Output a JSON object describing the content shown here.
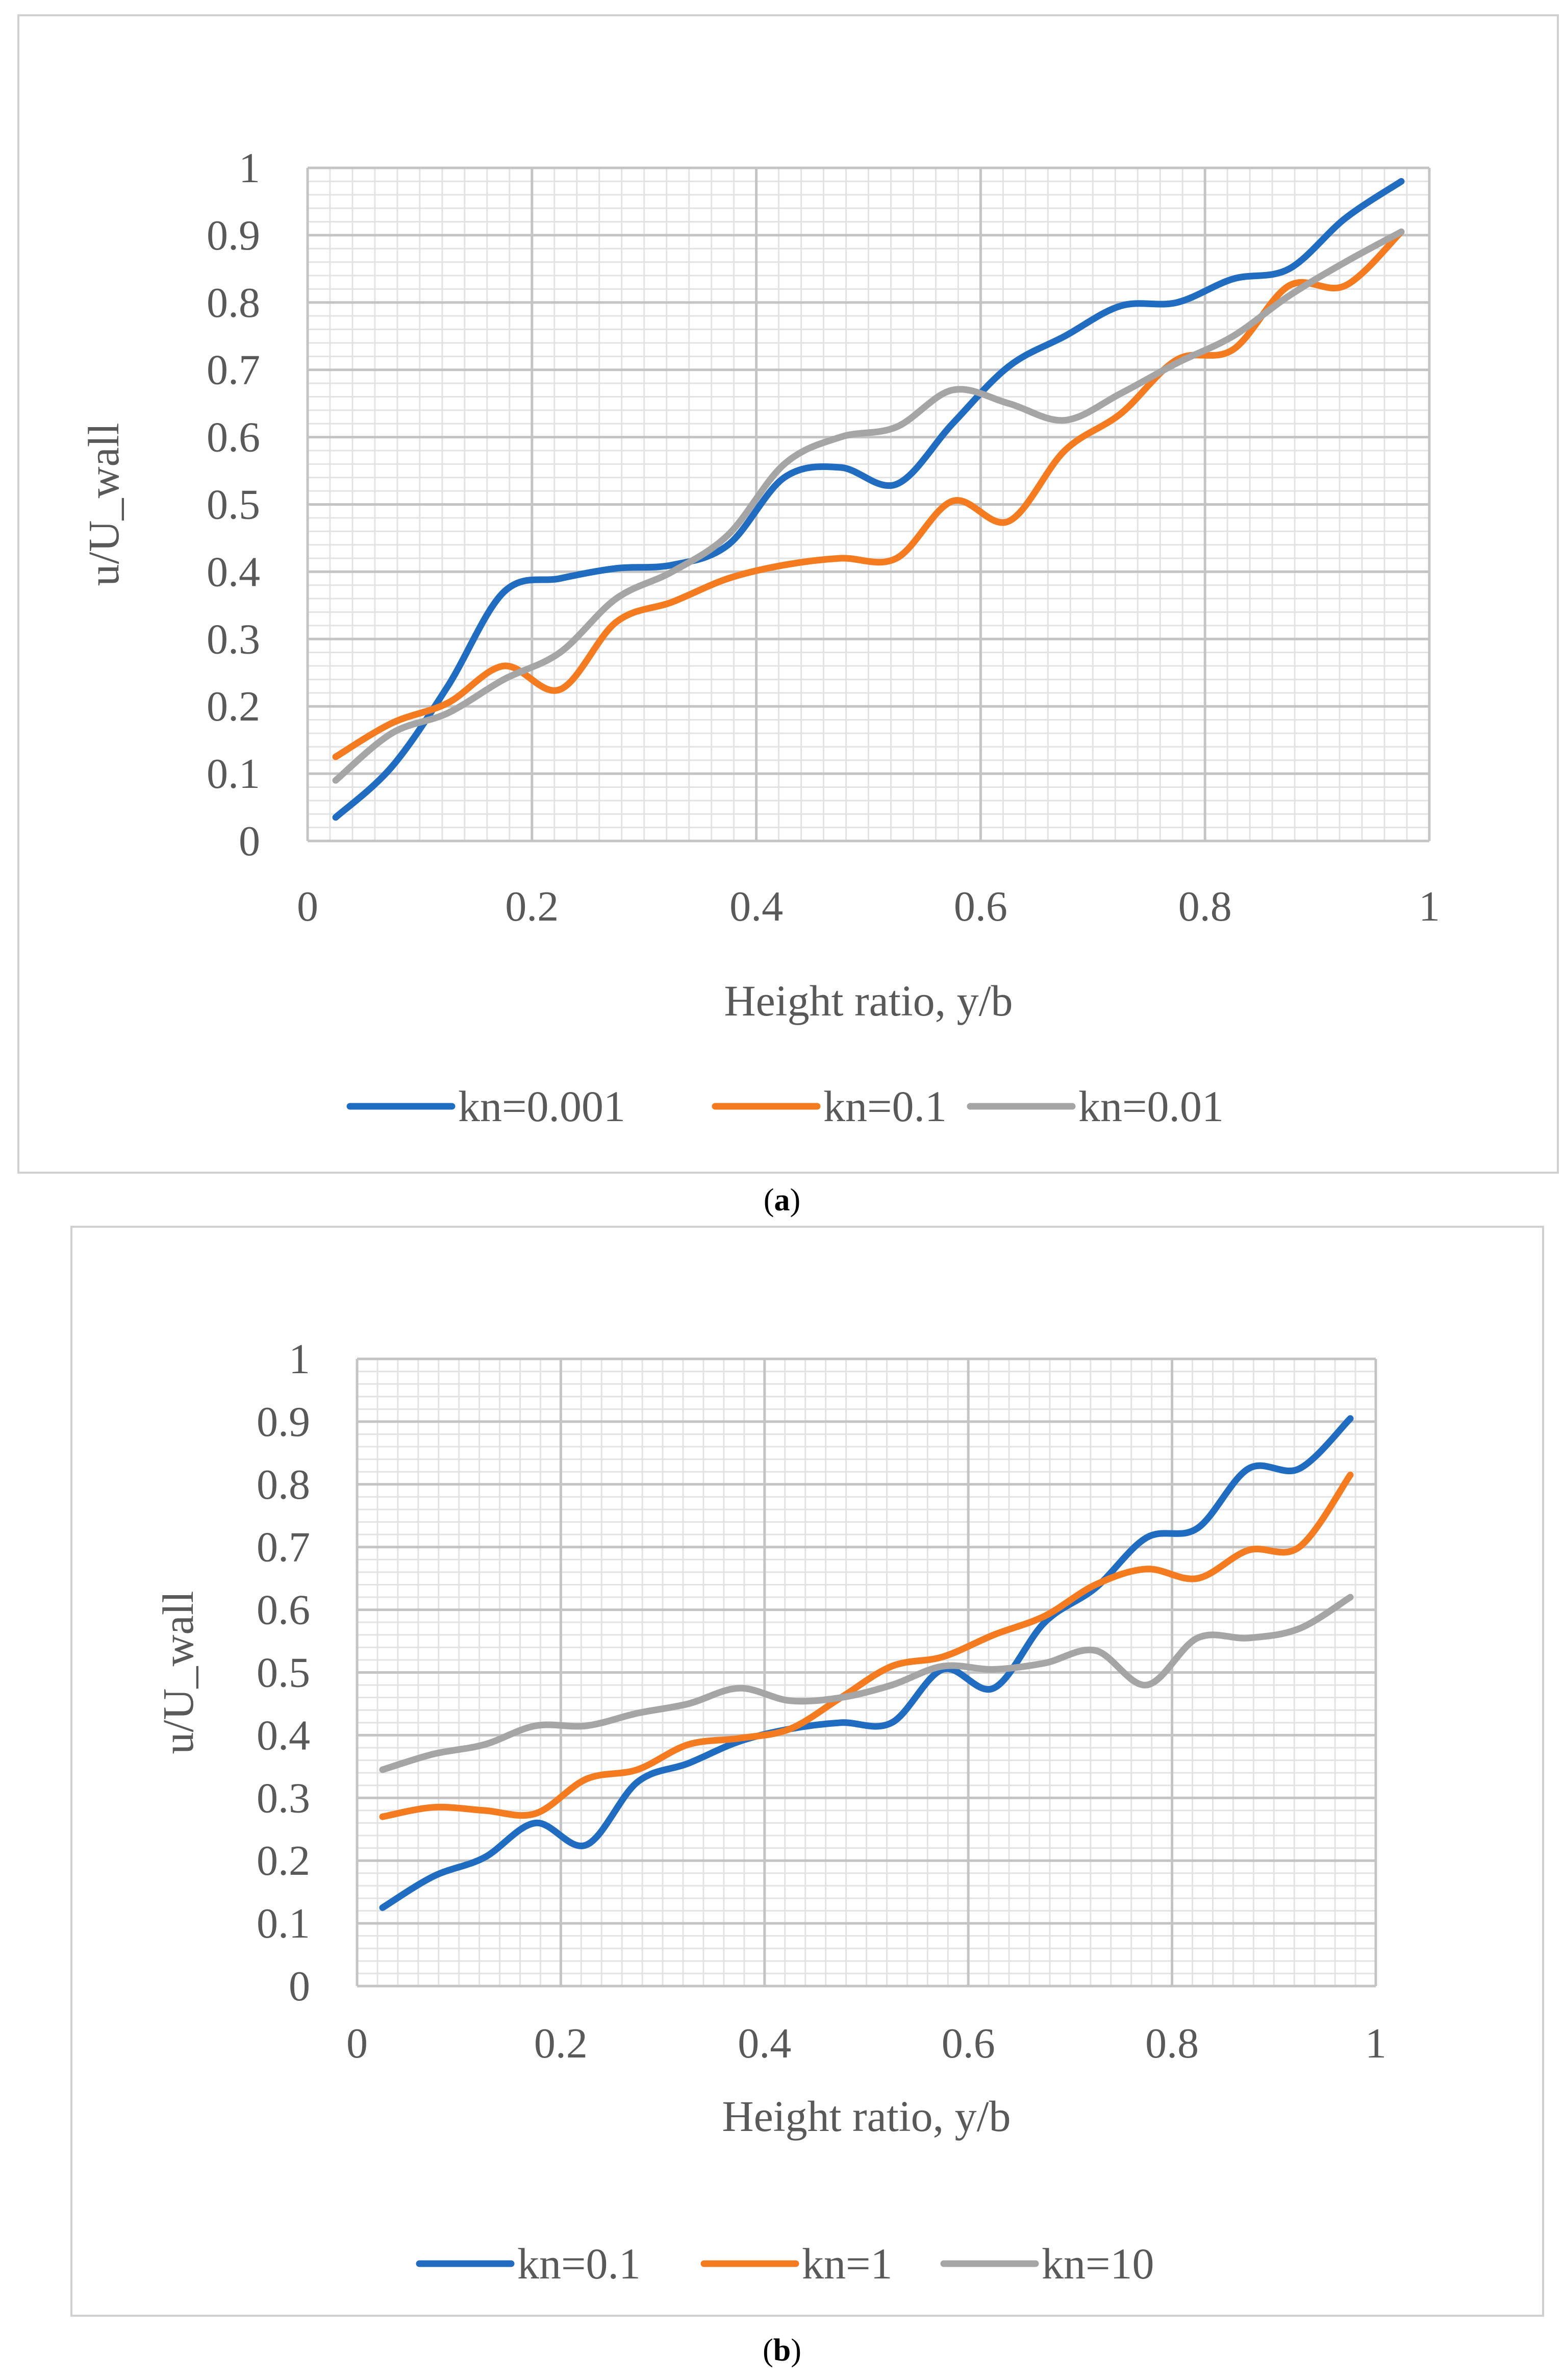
{
  "panels": [
    {
      "caption_open": "(",
      "caption_letter": "a",
      "caption_close": ")"
    },
    {
      "caption_open": "(",
      "caption_letter": "b",
      "caption_close": ")"
    }
  ],
  "chart_data": [
    {
      "type": "line",
      "title": "",
      "xlabel": "Height ratio, y/b",
      "ylabel": "u/U_wall",
      "xlim": [
        0,
        1
      ],
      "ylim": [
        0,
        1
      ],
      "x_ticks": [
        "0",
        "0.2",
        "0.4",
        "0.6",
        "0.8",
        "1"
      ],
      "y_ticks": [
        "0",
        "0.1",
        "0.2",
        "0.3",
        "0.4",
        "0.5",
        "0.6",
        "0.7",
        "0.8",
        "0.9",
        "1"
      ],
      "grid": true,
      "legend_position": "bottom",
      "series": [
        {
          "name": "kn=0.001",
          "color": "#1F6CC0",
          "x": [
            0.025,
            0.075,
            0.125,
            0.175,
            0.225,
            0.275,
            0.325,
            0.375,
            0.425,
            0.475,
            0.525,
            0.575,
            0.625,
            0.675,
            0.725,
            0.775,
            0.825,
            0.875,
            0.925,
            0.975
          ],
          "y": [
            0.035,
            0.11,
            0.23,
            0.37,
            0.39,
            0.405,
            0.41,
            0.44,
            0.54,
            0.555,
            0.53,
            0.62,
            0.705,
            0.75,
            0.795,
            0.8,
            0.835,
            0.85,
            0.925,
            0.98
          ]
        },
        {
          "name": "kn=0.1",
          "color": "#F47B20",
          "x": [
            0.025,
            0.075,
            0.125,
            0.175,
            0.225,
            0.275,
            0.325,
            0.375,
            0.425,
            0.475,
            0.525,
            0.575,
            0.625,
            0.675,
            0.725,
            0.775,
            0.825,
            0.875,
            0.925,
            0.975
          ],
          "y": [
            0.125,
            0.175,
            0.205,
            0.26,
            0.225,
            0.325,
            0.355,
            0.39,
            0.41,
            0.42,
            0.42,
            0.505,
            0.475,
            0.58,
            0.635,
            0.715,
            0.73,
            0.825,
            0.825,
            0.905
          ]
        },
        {
          "name": "kn=0.01",
          "color": "#A5A5A5",
          "x": [
            0.025,
            0.075,
            0.125,
            0.175,
            0.225,
            0.275,
            0.325,
            0.375,
            0.425,
            0.475,
            0.525,
            0.575,
            0.625,
            0.675,
            0.725,
            0.775,
            0.825,
            0.875,
            0.925,
            0.975
          ],
          "y": [
            0.09,
            0.16,
            0.19,
            0.24,
            0.28,
            0.36,
            0.4,
            0.455,
            0.56,
            0.6,
            0.615,
            0.67,
            0.65,
            0.625,
            0.665,
            0.71,
            0.75,
            0.81,
            0.86,
            0.905
          ]
        }
      ]
    },
    {
      "type": "line",
      "title": "",
      "xlabel": "Height ratio, y/b",
      "ylabel": "u/U_wall",
      "xlim": [
        0,
        1
      ],
      "ylim": [
        0,
        1
      ],
      "x_ticks": [
        "0",
        "0.2",
        "0.4",
        "0.6",
        "0.8",
        "1"
      ],
      "y_ticks": [
        "0",
        "0.1",
        "0.2",
        "0.3",
        "0.4",
        "0.5",
        "0.6",
        "0.7",
        "0.8",
        "0.9",
        "1"
      ],
      "grid": true,
      "legend_position": "bottom",
      "series": [
        {
          "name": "kn=0.1",
          "color": "#1F6CC0",
          "x": [
            0.025,
            0.075,
            0.125,
            0.175,
            0.225,
            0.275,
            0.325,
            0.375,
            0.425,
            0.475,
            0.525,
            0.575,
            0.625,
            0.675,
            0.725,
            0.775,
            0.825,
            0.875,
            0.925,
            0.975
          ],
          "y": [
            0.125,
            0.175,
            0.205,
            0.26,
            0.225,
            0.325,
            0.355,
            0.39,
            0.41,
            0.42,
            0.42,
            0.505,
            0.475,
            0.58,
            0.635,
            0.715,
            0.73,
            0.825,
            0.825,
            0.905
          ]
        },
        {
          "name": "kn=1",
          "color": "#F47B20",
          "x": [
            0.025,
            0.075,
            0.125,
            0.175,
            0.225,
            0.275,
            0.325,
            0.375,
            0.425,
            0.475,
            0.525,
            0.575,
            0.625,
            0.675,
            0.725,
            0.775,
            0.825,
            0.875,
            0.925,
            0.975
          ],
          "y": [
            0.27,
            0.285,
            0.28,
            0.275,
            0.33,
            0.345,
            0.385,
            0.395,
            0.41,
            0.46,
            0.51,
            0.525,
            0.56,
            0.59,
            0.64,
            0.665,
            0.65,
            0.695,
            0.7,
            0.815
          ]
        },
        {
          "name": "kn=10",
          "color": "#A5A5A5",
          "x": [
            0.025,
            0.075,
            0.125,
            0.175,
            0.225,
            0.275,
            0.325,
            0.375,
            0.425,
            0.475,
            0.525,
            0.575,
            0.625,
            0.675,
            0.725,
            0.775,
            0.825,
            0.875,
            0.925,
            0.975
          ],
          "y": [
            0.345,
            0.37,
            0.385,
            0.415,
            0.415,
            0.435,
            0.45,
            0.475,
            0.455,
            0.46,
            0.48,
            0.51,
            0.505,
            0.515,
            0.535,
            0.48,
            0.555,
            0.555,
            0.57,
            0.62
          ]
        }
      ]
    }
  ]
}
